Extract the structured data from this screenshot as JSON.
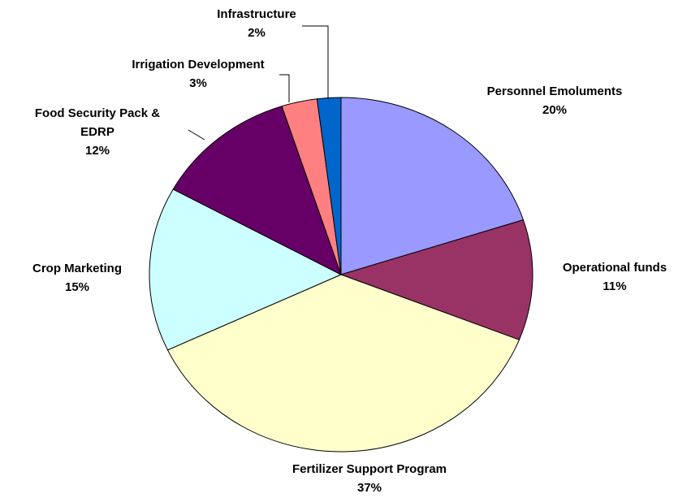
{
  "chart_data": {
    "type": "pie",
    "categories": [
      "Personnel Emoluments",
      "Operational funds",
      "Fertilizer Support Program",
      "Crop Marketing",
      "Food Security Pack & EDRP",
      "Irrigation Development",
      "Infrastructure"
    ],
    "values": [
      20,
      11,
      37,
      15,
      12,
      3,
      2
    ],
    "value_labels": [
      "20%",
      "11%",
      "37%",
      "15%",
      "12%",
      "3%",
      "2%"
    ],
    "colors": [
      "#9999ff",
      "#993366",
      "#ffffcc",
      "#ccffff",
      "#660066",
      "#ff8080",
      "#0066cc"
    ]
  }
}
